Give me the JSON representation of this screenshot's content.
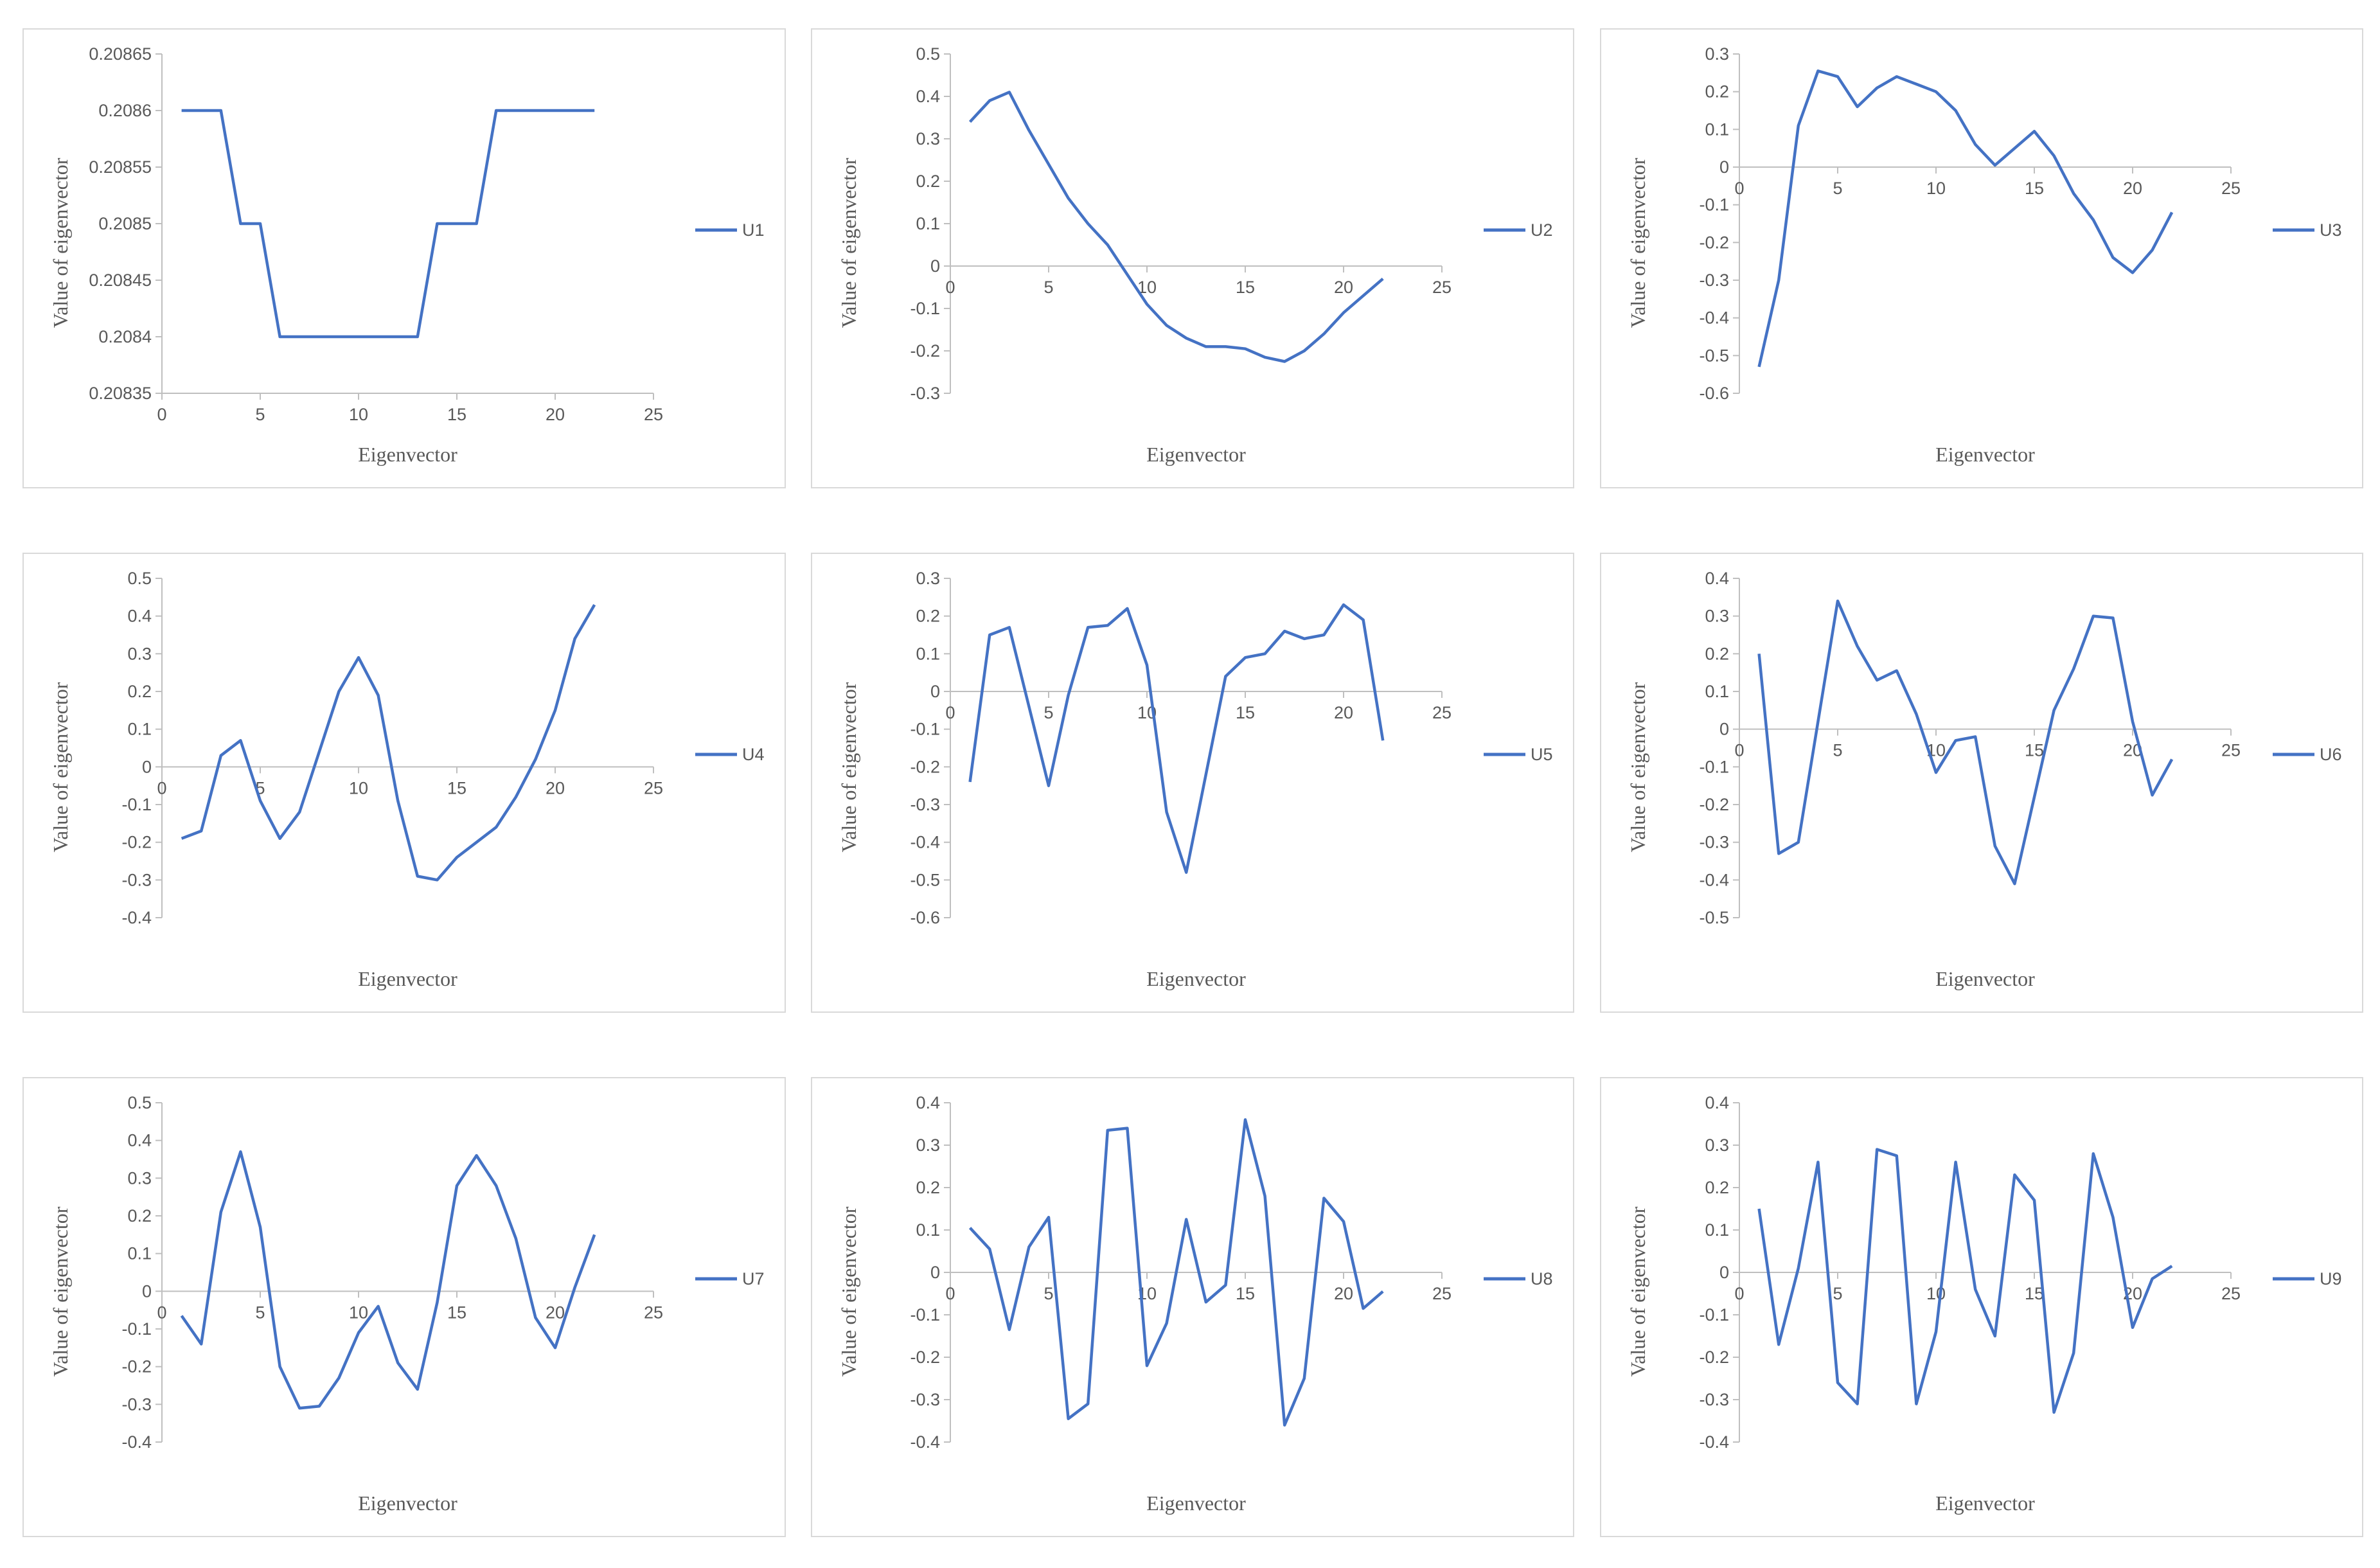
{
  "colors": {
    "series": "#4472c4",
    "axis": "#bfbfbf",
    "text": "#595959",
    "border": "#d9d9d9"
  },
  "chart_data": [
    {
      "type": "line",
      "title": "",
      "xlabel": "Eigenvector",
      "ylabel": "Value of eigenvector",
      "xlim": [
        0,
        25
      ],
      "ylim": [
        0.20835,
        0.20865
      ],
      "xticks": [
        "0",
        "5",
        "10",
        "15",
        "20",
        "25"
      ],
      "yticks": [
        "0.20835",
        "0.2084",
        "0.20845",
        "0.2085",
        "0.20855",
        "0.2086",
        "0.20865"
      ],
      "legend": "right",
      "grid": false,
      "series": [
        {
          "name": "U1",
          "x": [
            1,
            2,
            3,
            4,
            5,
            6,
            7,
            8,
            9,
            10,
            11,
            12,
            13,
            14,
            15,
            16,
            17,
            18,
            19,
            20,
            21,
            22
          ],
          "values": [
            0.2086,
            0.2086,
            0.2086,
            0.2085,
            0.2085,
            0.2084,
            0.2084,
            0.2084,
            0.2084,
            0.2084,
            0.2084,
            0.2084,
            0.2084,
            0.2085,
            0.2085,
            0.2085,
            0.2086,
            0.2086,
            0.2086,
            0.2086,
            0.2086,
            0.2086
          ]
        }
      ]
    },
    {
      "type": "line",
      "title": "",
      "xlabel": "Eigenvector",
      "ylabel": "Value of eigenvector",
      "xlim": [
        0,
        25
      ],
      "ylim": [
        -0.3,
        0.5
      ],
      "xticks": [
        "0",
        "5",
        "10",
        "15",
        "20",
        "25"
      ],
      "yticks": [
        "-0.3",
        "-0.2",
        "-0.1",
        "0",
        "0.1",
        "0.2",
        "0.3",
        "0.4",
        "0.5"
      ],
      "legend": "right",
      "grid": false,
      "series": [
        {
          "name": "U2",
          "x": [
            1,
            2,
            3,
            4,
            5,
            6,
            7,
            8,
            9,
            10,
            11,
            12,
            13,
            14,
            15,
            16,
            17,
            18,
            19,
            20,
            21,
            22
          ],
          "values": [
            0.34,
            0.39,
            0.41,
            0.32,
            0.24,
            0.16,
            0.1,
            0.05,
            -0.02,
            -0.09,
            -0.14,
            -0.17,
            -0.19,
            -0.19,
            -0.195,
            -0.215,
            -0.225,
            -0.2,
            -0.16,
            -0.11,
            -0.07,
            -0.03
          ]
        }
      ]
    },
    {
      "type": "line",
      "title": "",
      "xlabel": "Eigenvector",
      "ylabel": "Value of eigenvector",
      "xlim": [
        0,
        25
      ],
      "ylim": [
        -0.6,
        0.3
      ],
      "xticks": [
        "0",
        "5",
        "10",
        "15",
        "20",
        "25"
      ],
      "yticks": [
        "-0.6",
        "-0.5",
        "-0.4",
        "-0.3",
        "-0.2",
        "-0.1",
        "0",
        "0.1",
        "0.2",
        "0.3"
      ],
      "legend": "right",
      "grid": false,
      "series": [
        {
          "name": "U3",
          "x": [
            1,
            2,
            3,
            4,
            5,
            6,
            7,
            8,
            9,
            10,
            11,
            12,
            13,
            14,
            15,
            16,
            17,
            18,
            19,
            20,
            21,
            22
          ],
          "values": [
            -0.53,
            -0.3,
            0.11,
            0.255,
            0.24,
            0.16,
            0.21,
            0.24,
            0.22,
            0.2,
            0.15,
            0.06,
            0.005,
            0.05,
            0.095,
            0.03,
            -0.07,
            -0.14,
            -0.24,
            -0.28,
            -0.22,
            -0.12
          ]
        }
      ]
    },
    {
      "type": "line",
      "title": "",
      "xlabel": "Eigenvector",
      "ylabel": "Value of eigenvector",
      "xlim": [
        0,
        25
      ],
      "ylim": [
        -0.4,
        0.5
      ],
      "xticks": [
        "0",
        "5",
        "10",
        "15",
        "20",
        "25"
      ],
      "yticks": [
        "-0.4",
        "-0.3",
        "-0.2",
        "-0.1",
        "0",
        "0.1",
        "0.2",
        "0.3",
        "0.4",
        "0.5"
      ],
      "legend": "right",
      "grid": false,
      "series": [
        {
          "name": "U4",
          "x": [
            1,
            2,
            3,
            4,
            5,
            6,
            7,
            8,
            9,
            10,
            11,
            12,
            13,
            14,
            15,
            16,
            17,
            18,
            19,
            20,
            21,
            22
          ],
          "values": [
            -0.19,
            -0.17,
            0.03,
            0.07,
            -0.09,
            -0.19,
            -0.12,
            0.04,
            0.2,
            0.29,
            0.19,
            -0.09,
            -0.29,
            -0.3,
            -0.24,
            -0.2,
            -0.16,
            -0.08,
            0.02,
            0.15,
            0.34,
            0.43
          ]
        }
      ]
    },
    {
      "type": "line",
      "title": "",
      "xlabel": "Eigenvector",
      "ylabel": "Value of eigenvector",
      "xlim": [
        0,
        25
      ],
      "ylim": [
        -0.6,
        0.3
      ],
      "xticks": [
        "0",
        "5",
        "10",
        "15",
        "20",
        "25"
      ],
      "yticks": [
        "-0.6",
        "-0.5",
        "-0.4",
        "-0.3",
        "-0.2",
        "-0.1",
        "0",
        "0.1",
        "0.2",
        "0.3"
      ],
      "legend": "right",
      "grid": false,
      "series": [
        {
          "name": "U5",
          "x": [
            1,
            2,
            3,
            4,
            5,
            6,
            7,
            8,
            9,
            10,
            11,
            12,
            13,
            14,
            15,
            16,
            17,
            18,
            19,
            20,
            21,
            22
          ],
          "values": [
            -0.24,
            0.15,
            0.17,
            -0.04,
            -0.25,
            -0.01,
            0.17,
            0.175,
            0.22,
            0.07,
            -0.32,
            -0.48,
            -0.22,
            0.04,
            0.09,
            0.1,
            0.16,
            0.14,
            0.15,
            0.23,
            0.19,
            -0.13
          ]
        }
      ]
    },
    {
      "type": "line",
      "title": "",
      "xlabel": "Eigenvector",
      "ylabel": "Value of eigenvector",
      "xlim": [
        0,
        25
      ],
      "ylim": [
        -0.5,
        0.4
      ],
      "xticks": [
        "0",
        "5",
        "10",
        "15",
        "20",
        "25"
      ],
      "yticks": [
        "-0.5",
        "-0.4",
        "-0.3",
        "-0.2",
        "-0.1",
        "0",
        "0.1",
        "0.2",
        "0.3",
        "0.4"
      ],
      "legend": "right",
      "grid": false,
      "series": [
        {
          "name": "U6",
          "x": [
            1,
            2,
            3,
            4,
            5,
            6,
            7,
            8,
            9,
            10,
            11,
            12,
            13,
            14,
            15,
            16,
            17,
            18,
            19,
            20,
            21,
            22
          ],
          "values": [
            0.2,
            -0.33,
            -0.3,
            0.02,
            0.34,
            0.22,
            0.13,
            0.155,
            0.04,
            -0.115,
            -0.03,
            -0.02,
            -0.31,
            -0.41,
            -0.18,
            0.05,
            0.16,
            0.3,
            0.295,
            0.02,
            -0.175,
            -0.08
          ]
        }
      ]
    },
    {
      "type": "line",
      "title": "",
      "xlabel": "Eigenvector",
      "ylabel": "Value of eigenvector",
      "xlim": [
        0,
        25
      ],
      "ylim": [
        -0.4,
        0.5
      ],
      "xticks": [
        "0",
        "5",
        "10",
        "15",
        "20",
        "25"
      ],
      "yticks": [
        "-0.4",
        "-0.3",
        "-0.2",
        "-0.1",
        "0",
        "0.1",
        "0.2",
        "0.3",
        "0.4",
        "0.5"
      ],
      "legend": "right",
      "grid": false,
      "series": [
        {
          "name": "U7",
          "x": [
            1,
            2,
            3,
            4,
            5,
            6,
            7,
            8,
            9,
            10,
            11,
            12,
            13,
            14,
            15,
            16,
            17,
            18,
            19,
            20,
            21,
            22
          ],
          "values": [
            -0.065,
            -0.14,
            0.21,
            0.37,
            0.17,
            -0.2,
            -0.31,
            -0.305,
            -0.23,
            -0.11,
            -0.04,
            -0.19,
            -0.26,
            -0.03,
            0.28,
            0.36,
            0.28,
            0.14,
            -0.07,
            -0.15,
            0.01,
            0.15
          ]
        }
      ]
    },
    {
      "type": "line",
      "title": "",
      "xlabel": "Eigenvector",
      "ylabel": "Value of eigenvector",
      "xlim": [
        0,
        25
      ],
      "ylim": [
        -0.4,
        0.4
      ],
      "xticks": [
        "0",
        "5",
        "10",
        "15",
        "20",
        "25"
      ],
      "yticks": [
        "-0.4",
        "-0.3",
        "-0.2",
        "-0.1",
        "0",
        "0.1",
        "0.2",
        "0.3",
        "0.4"
      ],
      "legend": "right",
      "grid": false,
      "series": [
        {
          "name": "U8",
          "x": [
            1,
            2,
            3,
            4,
            5,
            6,
            7,
            8,
            9,
            10,
            11,
            12,
            13,
            14,
            15,
            16,
            17,
            18,
            19,
            20,
            21,
            22
          ],
          "values": [
            0.105,
            0.055,
            -0.135,
            0.06,
            0.13,
            -0.345,
            -0.31,
            0.335,
            0.34,
            -0.22,
            -0.12,
            0.125,
            -0.07,
            -0.03,
            0.36,
            0.18,
            -0.36,
            -0.25,
            0.175,
            0.12,
            -0.085,
            -0.045
          ]
        }
      ]
    },
    {
      "type": "line",
      "title": "",
      "xlabel": "Eigenvector",
      "ylabel": "Value of eigenvector",
      "xlim": [
        0,
        25
      ],
      "ylim": [
        -0.4,
        0.4
      ],
      "xticks": [
        "0",
        "5",
        "10",
        "15",
        "20",
        "25"
      ],
      "yticks": [
        "-0.4",
        "-0.3",
        "-0.2",
        "-0.1",
        "0",
        "0.1",
        "0.2",
        "0.3",
        "0.4"
      ],
      "legend": "right",
      "grid": false,
      "series": [
        {
          "name": "U9",
          "x": [
            1,
            2,
            3,
            4,
            5,
            6,
            7,
            8,
            9,
            10,
            11,
            12,
            13,
            14,
            15,
            16,
            17,
            18,
            19,
            20,
            21,
            22
          ],
          "values": [
            0.15,
            -0.17,
            0.01,
            0.26,
            -0.26,
            -0.31,
            0.29,
            0.275,
            -0.31,
            -0.14,
            0.26,
            -0.04,
            -0.15,
            0.23,
            0.17,
            -0.33,
            -0.19,
            0.28,
            0.13,
            -0.13,
            -0.015,
            0.015
          ]
        }
      ]
    }
  ]
}
